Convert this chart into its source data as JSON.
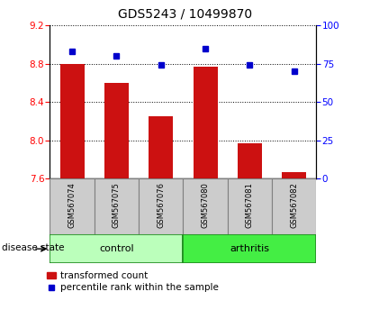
{
  "title": "GDS5243 / 10499870",
  "samples": [
    "GSM567074",
    "GSM567075",
    "GSM567076",
    "GSM567080",
    "GSM567081",
    "GSM567082"
  ],
  "bar_values": [
    8.8,
    8.6,
    8.25,
    8.77,
    7.97,
    7.67
  ],
  "bar_bottom": 7.6,
  "percentile_values": [
    83,
    80,
    74,
    85,
    74,
    70
  ],
  "ylim_left": [
    7.6,
    9.2
  ],
  "ylim_right": [
    0,
    100
  ],
  "yticks_left": [
    7.6,
    8.0,
    8.4,
    8.8,
    9.2
  ],
  "yticks_right": [
    0,
    25,
    50,
    75,
    100
  ],
  "bar_color": "#cc1111",
  "dot_color": "#0000cc",
  "groups": [
    {
      "label": "control",
      "color": "#bbffbb"
    },
    {
      "label": "arthritis",
      "color": "#44ee44"
    }
  ],
  "disease_state_label": "disease state",
  "legend_bar_label": "transformed count",
  "legend_dot_label": "percentile rank within the sample",
  "title_fontsize": 10,
  "tick_fontsize": 7.5,
  "sample_fontsize": 6.0,
  "legend_fontsize": 7.5,
  "grid_color": "black",
  "background_color": "#ffffff",
  "sample_box_color": "#cccccc",
  "group_edge_color": "#228B22"
}
